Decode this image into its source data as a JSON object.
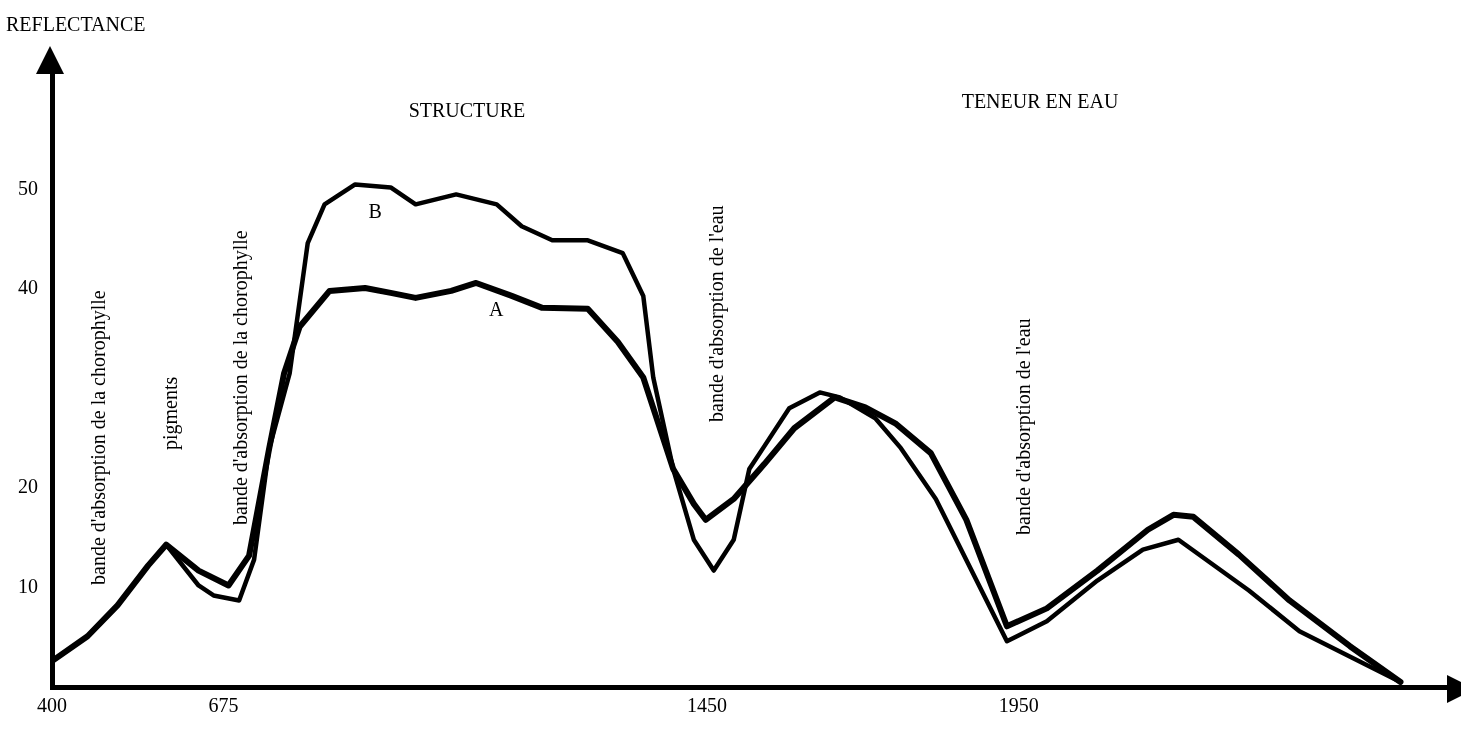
{
  "chart_data": {
    "type": "line",
    "ylabel": "REFLECTANCE",
    "xlim": [
      400,
      2643
    ],
    "xticks": [
      400,
      675,
      1450,
      1950
    ],
    "ylim": [
      0,
      62
    ],
    "yticks": [
      10,
      20,
      40,
      50
    ],
    "grid": false,
    "legend": false,
    "marker": "none",
    "line_style": "solid",
    "annotations": [
      "bande d'absorption de la chorophylle",
      "pigments",
      "bande d'absorption de la chorophylle",
      "STRUCTURE",
      "bande d'absorption de l'eau",
      "TENEUR EN EAU",
      "bande d'absorption de l'eau"
    ],
    "series": [
      {
        "name": "A",
        "color": "#000000",
        "x": [
          400,
          457,
          505,
          554,
          583,
          635,
          683,
          716,
          748,
          772,
          797,
          845,
          902,
          943,
          983,
          1040,
          1080,
          1137,
          1186,
          1259,
          1307,
          1348,
          1396,
          1429,
          1448,
          1493,
          1542,
          1590,
          1655,
          1704,
          1752,
          1809,
          1866,
          1931,
          1995,
          2076,
          2157,
          2198,
          2230,
          2303,
          2384,
          2481,
          2562
        ],
        "values": [
          2.6,
          5.1,
          8.2,
          12.2,
          14.3,
          11.7,
          10.2,
          13.2,
          23.9,
          31.5,
          36.2,
          39.8,
          40.1,
          39.6,
          39.1,
          39.8,
          40.6,
          39.3,
          38.1,
          38.0,
          34.7,
          31.1,
          21.9,
          18.4,
          16.8,
          18.9,
          22.4,
          26.0,
          29.1,
          28.1,
          26.5,
          23.5,
          16.8,
          6.1,
          7.9,
          11.7,
          15.8,
          17.3,
          17.1,
          13.3,
          8.7,
          4.1,
          0.5
        ]
      },
      {
        "name": "B",
        "color": "#000000",
        "x": [
          400,
          457,
          505,
          554,
          583,
          635,
          659,
          700,
          724,
          748,
          781,
          810,
          837,
          886,
          943,
          983,
          1048,
          1113,
          1153,
          1202,
          1258,
          1315,
          1348,
          1364,
          1396,
          1429,
          1461,
          1493,
          1518,
          1582,
          1631,
          1663,
          1720,
          1761,
          1817,
          1931,
          1995,
          2076,
          2149,
          2206,
          2319,
          2400,
          2562
        ],
        "values": [
          2.6,
          5.1,
          8.2,
          12.2,
          14.3,
          10.2,
          9.2,
          8.7,
          12.8,
          23.9,
          31.5,
          44.6,
          48.5,
          50.5,
          50.2,
          48.5,
          49.5,
          48.5,
          46.3,
          44.9,
          44.9,
          43.6,
          39.3,
          31.1,
          21.9,
          14.8,
          11.7,
          14.8,
          21.9,
          28.0,
          29.6,
          29.1,
          27.0,
          24.0,
          18.9,
          4.6,
          6.6,
          10.7,
          13.8,
          14.8,
          9.7,
          5.6,
          0.5
        ]
      }
    ]
  }
}
